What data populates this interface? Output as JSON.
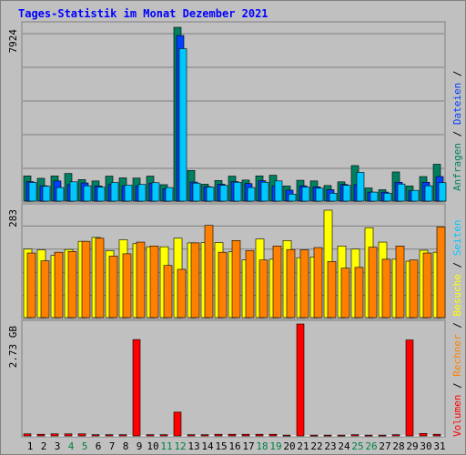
{
  "title": "Tages-Statistik im Monat Dezember 2021",
  "colors": {
    "anfragen": "#008060",
    "dateien": "#0040ff",
    "seiten": "#00c8ff",
    "besuche": "#ffff00",
    "rechner": "#ff8000",
    "volumen": "#ff0000",
    "grid": "#808080",
    "panel": "#c0c0c0",
    "weekend": "#008040",
    "weekday": "#000000"
  },
  "legend": {
    "volumen": "Volumen",
    "rechner": "Rechner",
    "besuche": "Besuche",
    "seiten": "Seiten",
    "dateien": "Dateien",
    "anfragen": "Anfragen",
    "sep": " / "
  },
  "chart_data": [
    {
      "type": "bar",
      "panel": "top",
      "axis_max_label": "7924",
      "ylim": [
        0,
        7924
      ],
      "series": [
        {
          "key": "anfragen",
          "values": [
            1150,
            1040,
            1150,
            1260,
            980,
            920,
            1140,
            1060,
            1050,
            1140,
            750,
            7924,
            1400,
            770,
            940,
            1140,
            960,
            1150,
            1180,
            690,
            950,
            920,
            710,
            880,
            1620,
            600,
            520,
            1330,
            690,
            1120,
            1680
          ]
        },
        {
          "key": "dateien",
          "values": [
            890,
            700,
            920,
            750,
            830,
            690,
            760,
            700,
            700,
            820,
            560,
            7550,
            870,
            660,
            770,
            890,
            800,
            930,
            700,
            500,
            700,
            650,
            520,
            760,
            750,
            410,
            410,
            860,
            470,
            860,
            1120
          ]
        },
        {
          "key": "seiten",
          "values": [
            850,
            680,
            620,
            880,
            700,
            640,
            850,
            730,
            760,
            840,
            620,
            6950,
            820,
            640,
            720,
            860,
            620,
            860,
            920,
            320,
            640,
            590,
            360,
            720,
            1310,
            410,
            360,
            780,
            490,
            700,
            840
          ]
        }
      ]
    },
    {
      "type": "bar",
      "panel": "middle",
      "axis_max_label": "283",
      "ylim": [
        0,
        283
      ],
      "series": [
        {
          "key": "besuche",
          "values": [
            176,
            174,
            160,
            175,
            196,
            206,
            172,
            200,
            190,
            182,
            182,
            204,
            192,
            193,
            193,
            169,
            148,
            202,
            150,
            198,
            154,
            156,
            276,
            184,
            176,
            231,
            194,
            150,
            145,
            173,
            168
          ]
        },
        {
          "key": "rechner",
          "values": [
            166,
            146,
            168,
            170,
            196,
            204,
            158,
            164,
            194,
            184,
            134,
            124,
            192,
            237,
            168,
            198,
            172,
            148,
            184,
            175,
            174,
            180,
            144,
            127,
            129,
            181,
            150,
            184,
            148,
            166,
            233
          ]
        }
      ]
    },
    {
      "type": "bar",
      "panel": "bottom",
      "axis_max_label": "2.73 GB",
      "ylim": [
        0,
        2.73
      ],
      "series": [
        {
          "key": "volumen",
          "values": [
            0.05,
            0.04,
            0.05,
            0.05,
            0.05,
            0.03,
            0.03,
            0.03,
            2.35,
            0.03,
            0.03,
            0.58,
            0.03,
            0.03,
            0.04,
            0.04,
            0.04,
            0.04,
            0.04,
            0.02,
            2.73,
            0.02,
            0.02,
            0.02,
            0.03,
            0.02,
            0.02,
            0.03,
            2.34,
            0.06,
            0.04
          ]
        }
      ]
    }
  ],
  "days": [
    "1",
    "2",
    "3",
    "4",
    "5",
    "6",
    "7",
    "8",
    "9",
    "10",
    "11",
    "12",
    "13",
    "14",
    "15",
    "16",
    "17",
    "18",
    "19",
    "20",
    "21",
    "22",
    "23",
    "24",
    "25",
    "26",
    "27",
    "28",
    "29",
    "30",
    "31"
  ],
  "weekend": [
    4,
    5,
    11,
    12,
    18,
    19,
    25,
    26
  ]
}
